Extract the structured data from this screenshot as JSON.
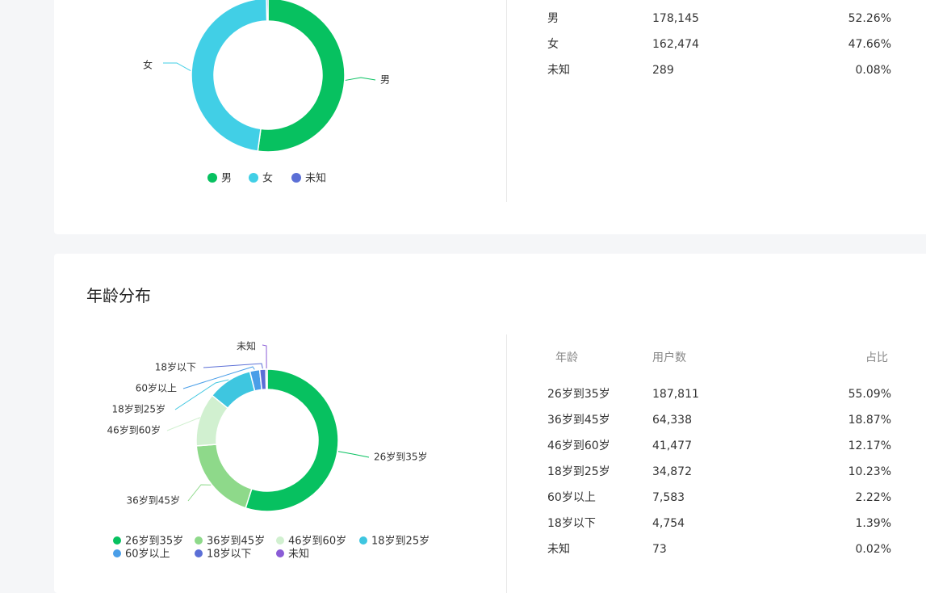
{
  "gender": {
    "table_rows": [
      {
        "label": "男",
        "count": "178,145",
        "pct": "52.26%"
      },
      {
        "label": "女",
        "count": "162,474",
        "pct": "47.66%"
      },
      {
        "label": "未知",
        "count": "289",
        "pct": "0.08%"
      }
    ]
  },
  "age": {
    "title": "年龄分布",
    "table_header": {
      "label": "年龄",
      "count": "用户数",
      "pct": "占比"
    },
    "table_rows": [
      {
        "label": "26岁到35岁",
        "count": "187,811",
        "pct": "55.09%"
      },
      {
        "label": "36岁到45岁",
        "count": "64,338",
        "pct": "18.87%"
      },
      {
        "label": "46岁到60岁",
        "count": "41,477",
        "pct": "12.17%"
      },
      {
        "label": "18岁到25岁",
        "count": "34,872",
        "pct": "10.23%"
      },
      {
        "label": "60岁以上",
        "count": "7,583",
        "pct": "2.22%"
      },
      {
        "label": "18岁以下",
        "count": "4,754",
        "pct": "1.39%"
      },
      {
        "label": "未知",
        "count": "73",
        "pct": "0.02%"
      }
    ]
  },
  "chart_data": [
    {
      "type": "pie",
      "donut": true,
      "categories": [
        "男",
        "女",
        "未知"
      ],
      "values": [
        178145,
        162474,
        289
      ],
      "colors": [
        "#07c160",
        "#41cfe6",
        "#5b6fd6"
      ],
      "legend": "bottom"
    },
    {
      "type": "pie",
      "donut": true,
      "categories": [
        "26岁到35岁",
        "36岁到45岁",
        "46岁到60岁",
        "18岁到25岁",
        "60岁以上",
        "18岁以下",
        "未知"
      ],
      "values": [
        187811,
        64338,
        41477,
        34872,
        7583,
        4754,
        73
      ],
      "colors": [
        "#07c160",
        "#8ed98a",
        "#d1f0d0",
        "#3ec6e0",
        "#4a9ee8",
        "#5b6fd6",
        "#8a5cd6"
      ],
      "legend": "bottom"
    }
  ]
}
